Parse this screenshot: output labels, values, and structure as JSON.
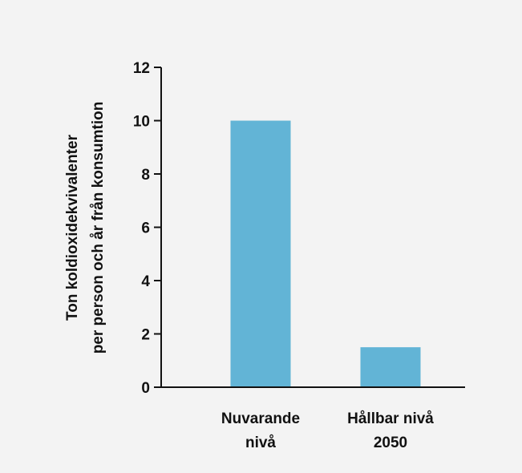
{
  "chart_data": {
    "type": "bar",
    "title": "",
    "xlabel": "",
    "ylabel_lines": [
      "Ton koldioxidekvivalenter",
      "per person och år från konsumtion"
    ],
    "categories": [
      [
        "Nuvarande",
        "nivå"
      ],
      [
        "Hållbar nivå",
        "2050"
      ]
    ],
    "values": [
      10,
      1.5
    ],
    "ylim": [
      0,
      12
    ],
    "yticks": [
      0,
      2,
      4,
      6,
      8,
      10,
      12
    ],
    "grid": false,
    "bar_color": "#62b4d6",
    "axis_color": "#111111",
    "background": "#f3f3f3"
  }
}
